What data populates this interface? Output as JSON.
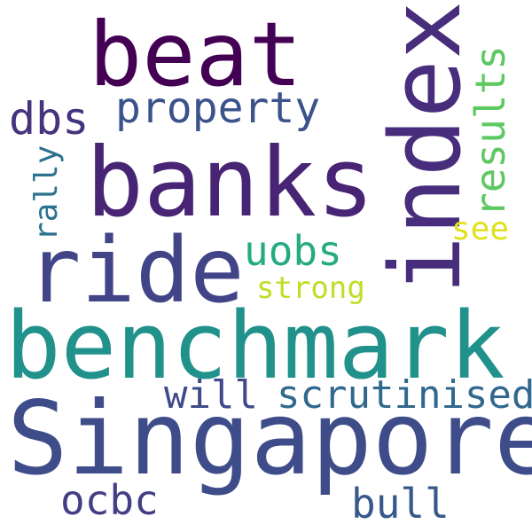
{
  "words": [
    {
      "text": "beat",
      "color": "#440154"
    },
    {
      "text": "index",
      "color": "#472d7b"
    },
    {
      "text": "banks",
      "color": "#482475"
    },
    {
      "text": "ride",
      "color": "#414487"
    },
    {
      "text": "property",
      "color": "#3b528b"
    },
    {
      "text": "dbs",
      "color": "#46337e"
    },
    {
      "text": "results",
      "color": "#5ec962"
    },
    {
      "text": "rally",
      "color": "#2c728e"
    },
    {
      "text": "see",
      "color": "#dde318"
    },
    {
      "text": "uobs",
      "color": "#25ab82"
    },
    {
      "text": "strong",
      "color": "#bddf26"
    },
    {
      "text": "benchmark",
      "color": "#21918c"
    },
    {
      "text": "will",
      "color": "#3e4a89"
    },
    {
      "text": "scrutinised",
      "color": "#31688e"
    },
    {
      "text": "Singapore",
      "color": "#3e4c8a"
    },
    {
      "text": "ocbc",
      "color": "#433e85"
    },
    {
      "text": "bull",
      "color": "#38588c"
    }
  ]
}
